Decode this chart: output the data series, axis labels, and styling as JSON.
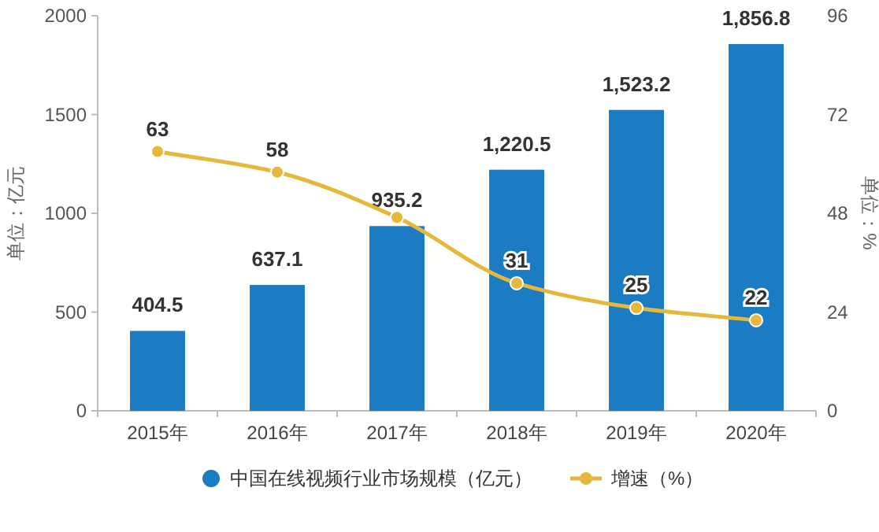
{
  "chart_data": {
    "type": "bar",
    "categories": [
      "2015年",
      "2016年",
      "2017年",
      "2018年",
      "2019年",
      "2020年"
    ],
    "series": [
      {
        "name": "中国在线视频行业市场规模（亿元）",
        "color": "#1b7cc4",
        "values": [
          404.5,
          637.1,
          935.2,
          1220.5,
          1523.2,
          1856.8
        ],
        "value_labels": [
          "404.5",
          "637.1",
          "935.2",
          "1,220.5",
          "1,523.2",
          "1,856.8"
        ]
      },
      {
        "name": "增速（%）",
        "type": "line",
        "axis": "y2",
        "color": "#e5b73b",
        "values": [
          63,
          58,
          47,
          31,
          25,
          22
        ],
        "value_labels": [
          "63",
          "58",
          null,
          "31",
          "25",
          "22"
        ]
      }
    ],
    "ylabel": "单位：亿元",
    "y2label": "单位：%",
    "ylim": [
      0,
      2000
    ],
    "yticks": [
      0,
      500,
      1000,
      1500,
      2000
    ],
    "y2lim": [
      0,
      96
    ],
    "y2ticks": [
      0,
      24,
      48,
      72,
      96
    ],
    "legend": "bottom",
    "marker": "circle"
  }
}
